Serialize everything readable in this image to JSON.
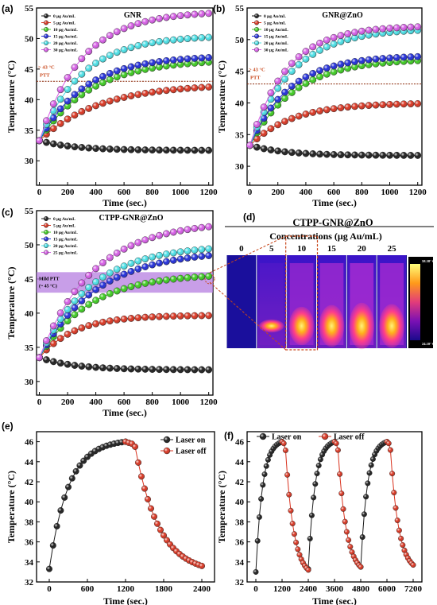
{
  "chart_data": [
    {
      "id": "a",
      "panel_label": "(a)",
      "type": "line",
      "title": "GNR",
      "xlabel": "Time (sec.)",
      "ylabel": "Temperature (°C)",
      "xlim": [
        -20,
        1230
      ],
      "ylim": [
        26,
        55
      ],
      "xticks": [
        0,
        200,
        400,
        600,
        800,
        1000,
        1200
      ],
      "yticks": [
        30,
        35,
        40,
        45,
        50,
        55
      ],
      "legend_placement": "top-left",
      "annotations": [
        "> 43 °C",
        "PTT"
      ],
      "threshold": 43,
      "series": [
        {
          "name": "0 μg Au/mL",
          "color": "#1a1a1a",
          "start": 33.3,
          "end": 31.7,
          "tau": 250
        },
        {
          "name": "5 μg Au/mL",
          "color": "#d9331f",
          "start": 33.3,
          "end": 42.6,
          "tau": 420
        },
        {
          "name": "10 μg Au/mL",
          "color": "#3ccc1f",
          "start": 33.3,
          "end": 46.6,
          "tau": 360
        },
        {
          "name": "15 μg Au/mL",
          "color": "#1f2bd9",
          "start": 33.3,
          "end": 47.2,
          "tau": 320
        },
        {
          "name": "20 μg Au/mL",
          "color": "#49e0e6",
          "start": 33.3,
          "end": 50.5,
          "tau": 300
        },
        {
          "name": "30 μg Au/mL",
          "color": "#d65ce6",
          "start": 33.3,
          "end": 54.5,
          "tau": 300
        }
      ]
    },
    {
      "id": "b",
      "panel_label": "(b)",
      "type": "line",
      "title": "GNR@ZnO",
      "xlabel": "Time (sec.)",
      "ylabel": "Temperature (°C)",
      "xlim": [
        -20,
        1230
      ],
      "ylim": [
        27,
        55
      ],
      "xticks": [
        0,
        200,
        400,
        600,
        800,
        1000,
        1200
      ],
      "yticks": [
        30,
        35,
        40,
        45,
        50,
        55
      ],
      "legend_placement": "top-left",
      "annotations": [
        "> 43 °C",
        "PTT"
      ],
      "threshold": 43,
      "series": [
        {
          "name": "0 μg Au/mL",
          "color": "#1a1a1a",
          "start": 33.3,
          "end": 31.7,
          "tau": 250
        },
        {
          "name": "5 μg Au/mL",
          "color": "#d9331f",
          "start": 33.3,
          "end": 40.0,
          "tau": 300
        },
        {
          "name": "10 μg Au/mL",
          "color": "#3ccc1f",
          "start": 33.3,
          "end": 47.0,
          "tau": 320
        },
        {
          "name": "15 μg Au/mL",
          "color": "#1f2bd9",
          "start": 33.3,
          "end": 47.5,
          "tau": 280
        },
        {
          "name": "20 μg Au/mL",
          "color": "#49e0e6",
          "start": 33.3,
          "end": 51.8,
          "tau": 300
        },
        {
          "name": "30 μg Au/mL",
          "color": "#d65ce6",
          "start": 33.3,
          "end": 52.2,
          "tau": 260
        }
      ]
    },
    {
      "id": "c",
      "panel_label": "(c)",
      "type": "line",
      "title": "CTPP-GNR@ZnO",
      "xlabel": "Time (sec.)",
      "ylabel": "Temperature (°C)",
      "xlim": [
        -20,
        1230
      ],
      "ylim": [
        28,
        55
      ],
      "xticks": [
        0,
        200,
        400,
        600,
        800,
        1000,
        1200
      ],
      "yticks": [
        30,
        35,
        40,
        45,
        50,
        55
      ],
      "legend_placement": "top-left",
      "annotations": [
        "Mild PTT",
        "(~ 45 °C)"
      ],
      "band": [
        43,
        46
      ],
      "series": [
        {
          "name": "0 μg Au/mL",
          "color": "#1a1a1a",
          "start": 33.5,
          "end": 31.7,
          "tau": 250
        },
        {
          "name": "5 μg Au/mL",
          "color": "#d9331f",
          "start": 33.5,
          "end": 39.7,
          "tau": 250
        },
        {
          "name": "10 μg Au/mL",
          "color": "#3ccc1f",
          "start": 33.5,
          "end": 45.8,
          "tau": 350
        },
        {
          "name": "15 μg Au/mL",
          "color": "#1f2bd9",
          "start": 33.5,
          "end": 49.2,
          "tau": 400
        },
        {
          "name": "20 μg Au/mL",
          "color": "#49e0e6",
          "start": 33.5,
          "end": 50.0,
          "tau": 360
        },
        {
          "name": "25 μg Au/mL",
          "color": "#d65ce6",
          "start": 33.5,
          "end": 53.5,
          "tau": 380
        }
      ]
    },
    {
      "id": "d",
      "panel_label": "(d)",
      "type": "heatmap",
      "title": "CTPP-GNR@ZnO",
      "subtitle": "Concentrations (μg Au/mL)",
      "categories": [
        "0",
        "5",
        "10",
        "15",
        "20",
        "25"
      ],
      "colorbar_max": "58.38° C",
      "colorbar_min": "24.10° C",
      "hot_intensity": [
        0.0,
        0.15,
        0.72,
        0.8,
        0.9,
        0.84
      ]
    },
    {
      "id": "e",
      "panel_label": "(e)",
      "type": "line",
      "xlabel": "Time (sec.)",
      "ylabel": "Temperature (°C)",
      "xlim": [
        -200,
        2600
      ],
      "ylim": [
        32,
        47
      ],
      "xticks": [
        0,
        600,
        1200,
        1800,
        2400
      ],
      "yticks": [
        32,
        34,
        36,
        38,
        40,
        42,
        44,
        46
      ],
      "legend_placement": "top-right",
      "series": [
        {
          "name": "Laser on",
          "color": "#1a1a1a",
          "phase": "heating",
          "t_start": 0,
          "t_end": 1200,
          "T_start": 33.3,
          "T_end": 46.0
        },
        {
          "name": "Laser off",
          "color": "#d9331f",
          "phase": "cooling",
          "t_start": 1200,
          "t_end": 2400,
          "T_start": 46.0,
          "T_end": 33.6
        }
      ]
    },
    {
      "id": "f",
      "panel_label": "(f)",
      "type": "line",
      "xlabel": "Time (sec.)",
      "ylabel": "Temperature (°C)",
      "xlim": [
        -400,
        7600
      ],
      "ylim": [
        32,
        47
      ],
      "xticks": [
        0,
        1200,
        2400,
        3600,
        4800,
        6000,
        7200
      ],
      "yticks": [
        32,
        34,
        36,
        38,
        40,
        42,
        44,
        46
      ],
      "legend_placement": "top-left",
      "cycles": [
        {
          "t_start": 0,
          "t_peak": 1200,
          "t_end": 2400,
          "T_base": 33.0,
          "T_peak": 46.0
        },
        {
          "t_start": 2400,
          "t_peak": 3600,
          "t_end": 4800,
          "T_base": 33.3,
          "T_peak": 46.0
        },
        {
          "t_start": 4800,
          "t_peak": 6000,
          "t_end": 7200,
          "T_base": 33.5,
          "T_peak": 46.0
        }
      ],
      "series": [
        {
          "name": "Laser on",
          "color": "#1a1a1a"
        },
        {
          "name": "Laser off",
          "color": "#d9331f"
        }
      ]
    }
  ]
}
